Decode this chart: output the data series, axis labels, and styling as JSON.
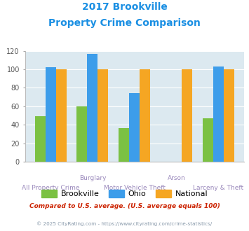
{
  "title_line1": "2017 Brookville",
  "title_line2": "Property Crime Comparison",
  "title_color": "#1a8fe3",
  "brookville": [
    49,
    60,
    36,
    0,
    47
  ],
  "ohio": [
    102,
    117,
    74,
    0,
    103
  ],
  "national": [
    100,
    100,
    100,
    100,
    100
  ],
  "bar_colors": {
    "brookville": "#7bc143",
    "ohio": "#3d9dea",
    "national": "#f5a623"
  },
  "ylim": [
    0,
    120
  ],
  "yticks": [
    0,
    20,
    40,
    60,
    80,
    100,
    120
  ],
  "background_color": "#dce9f0",
  "grid_color": "#ffffff",
  "top_labels": [
    "",
    "Burglary",
    "",
    "Arson",
    ""
  ],
  "bottom_labels": [
    "All Property Crime",
    "",
    "Motor Vehicle Theft",
    "",
    "Larceny & Theft"
  ],
  "footnote": "Compared to U.S. average. (U.S. average equals 100)",
  "footnote2": "© 2025 CityRating.com - https://www.cityrating.com/crime-statistics/",
  "footnote_color": "#cc2200",
  "footnote2_color": "#8899aa",
  "legend_labels": [
    "Brookville",
    "Ohio",
    "National"
  ],
  "xlabel_color": "#9988bb"
}
